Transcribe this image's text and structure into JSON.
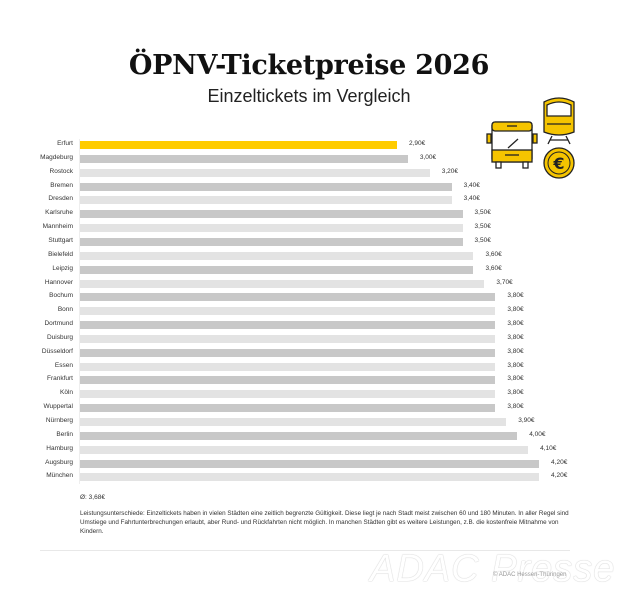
{
  "title": "ÖPNV-Ticketpreise 2026",
  "subtitle": "Einzeltickets im Vergleich",
  "colors": {
    "highlight": "#ffcc00",
    "bar_dark": "#c8c8c8",
    "bar_light": "#e3e3e3",
    "icon_yellow": "#f5c400"
  },
  "icons": [
    "bus-icon",
    "train-icon",
    "euro-coin-icon"
  ],
  "rows": [
    {
      "city": "Erfurt",
      "value": 2.9,
      "label": "2,90€"
    },
    {
      "city": "Magdeburg",
      "value": 3.0,
      "label": "3,00€"
    },
    {
      "city": "Rostock",
      "value": 3.2,
      "label": "3,20€"
    },
    {
      "city": "Bremen",
      "value": 3.4,
      "label": "3,40€"
    },
    {
      "city": "Dresden",
      "value": 3.4,
      "label": "3,40€"
    },
    {
      "city": "Karlsruhe",
      "value": 3.5,
      "label": "3,50€"
    },
    {
      "city": "Mannheim",
      "value": 3.5,
      "label": "3,50€"
    },
    {
      "city": "Stuttgart",
      "value": 3.5,
      "label": "3,50€"
    },
    {
      "city": "Bielefeld",
      "value": 3.6,
      "label": "3,60€"
    },
    {
      "city": "Leipzig",
      "value": 3.6,
      "label": "3,60€"
    },
    {
      "city": "Hannover",
      "value": 3.7,
      "label": "3,70€"
    },
    {
      "city": "Bochum",
      "value": 3.8,
      "label": "3,80€"
    },
    {
      "city": "Bonn",
      "value": 3.8,
      "label": "3,80€"
    },
    {
      "city": "Dortmund",
      "value": 3.8,
      "label": "3,80€"
    },
    {
      "city": "Duisburg",
      "value": 3.8,
      "label": "3,80€"
    },
    {
      "city": "Düsseldorf",
      "value": 3.8,
      "label": "3,80€"
    },
    {
      "city": "Essen",
      "value": 3.8,
      "label": "3,80€"
    },
    {
      "city": "Frankfurt",
      "value": 3.8,
      "label": "3,80€"
    },
    {
      "city": "Köln",
      "value": 3.8,
      "label": "3,80€"
    },
    {
      "city": "Wuppertal",
      "value": 3.8,
      "label": "3,80€"
    },
    {
      "city": "Nürnberg",
      "value": 3.9,
      "label": "3,90€"
    },
    {
      "city": "Berlin",
      "value": 4.0,
      "label": "4,00€"
    },
    {
      "city": "Hamburg",
      "value": 4.1,
      "label": "4,10€"
    },
    {
      "city": "Augsburg",
      "value": 4.2,
      "label": "4,20€"
    },
    {
      "city": "München",
      "value": 4.2,
      "label": "4,20€"
    }
  ],
  "average": "Ø: 3,68€",
  "note": "Leistungsunterschiede: Einzeltickets haben in vielen Städten eine zeitlich begrenzte Gültigkeit. Diese liegt je nach Stadt meist zwischen 60 und 180 Minuten. In aller Regel sind Umstiege und Fahrtunterbrechungen erlaubt, aber Rund- und Rückfahrten nicht möglich. In manchen Städten gibt es weitere Leistungen, z.B. die kostenfreie Mitnahme von Kindern.",
  "watermark": "ADAC Presse",
  "copyright": "© ADAC Hessen-Thüringen",
  "chart_data": {
    "type": "bar",
    "orientation": "horizontal",
    "title": "ÖPNV-Ticketpreise 2026",
    "subtitle": "Einzeltickets im Vergleich",
    "xlabel": "",
    "ylabel": "",
    "categories": [
      "Erfurt",
      "Magdeburg",
      "Rostock",
      "Bremen",
      "Dresden",
      "Karlsruhe",
      "Mannheim",
      "Stuttgart",
      "Bielefeld",
      "Leipzig",
      "Hannover",
      "Bochum",
      "Bonn",
      "Dortmund",
      "Duisburg",
      "Düsseldorf",
      "Essen",
      "Frankfurt",
      "Köln",
      "Wuppertal",
      "Nürnberg",
      "Berlin",
      "Hamburg",
      "Augsburg",
      "München"
    ],
    "values": [
      2.9,
      3.0,
      3.2,
      3.4,
      3.4,
      3.5,
      3.5,
      3.5,
      3.6,
      3.6,
      3.7,
      3.8,
      3.8,
      3.8,
      3.8,
      3.8,
      3.8,
      3.8,
      3.8,
      3.8,
      3.9,
      4.0,
      4.1,
      4.2,
      4.2
    ],
    "unit": "€",
    "data_labels": [
      "2,90€",
      "3,00€",
      "3,20€",
      "3,40€",
      "3,40€",
      "3,50€",
      "3,50€",
      "3,50€",
      "3,60€",
      "3,60€",
      "3,70€",
      "3,80€",
      "3,80€",
      "3,80€",
      "3,80€",
      "3,80€",
      "3,80€",
      "3,80€",
      "3,80€",
      "3,80€",
      "3,90€",
      "4,00€",
      "4,10€",
      "4,20€",
      "4,20€"
    ],
    "highlighted_category": "Erfurt",
    "annotations": [
      "Ø: 3,68€"
    ],
    "grid": false,
    "legend": null,
    "xlim": [
      0,
      4.2
    ]
  }
}
